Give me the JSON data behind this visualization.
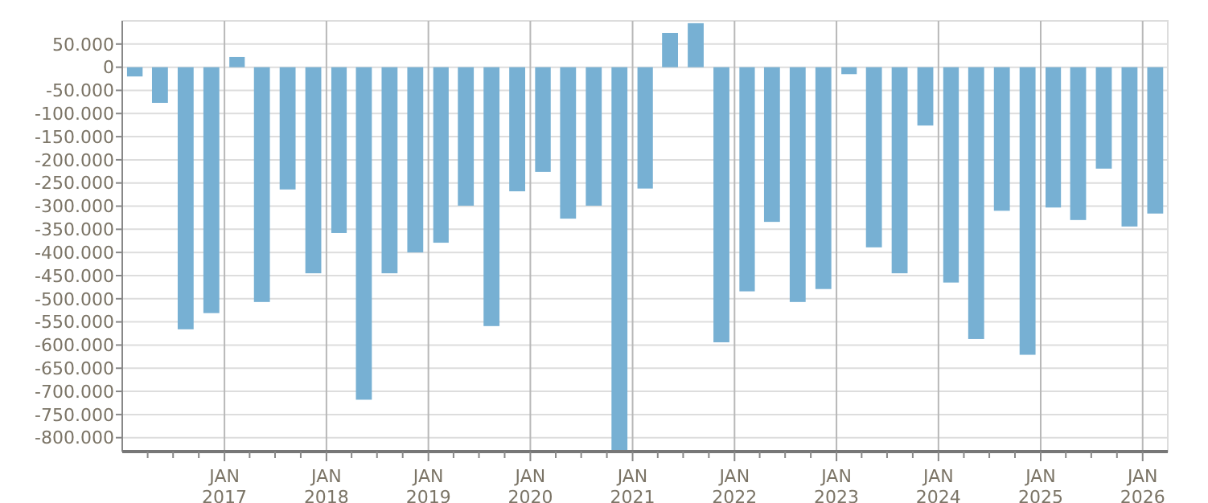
{
  "chart_data": {
    "type": "bar",
    "color": "#77b0d3",
    "grid": true,
    "x": [
      "2016-02-15",
      "2016-05-15",
      "2016-08-15",
      "2016-11-15",
      "2017-02-15",
      "2017-05-15",
      "2017-08-15",
      "2017-11-15",
      "2018-02-15",
      "2018-05-15",
      "2018-08-15",
      "2018-11-15",
      "2019-02-15",
      "2019-05-15",
      "2019-08-15",
      "2019-11-15",
      "2020-02-15",
      "2020-05-15",
      "2020-08-15",
      "2020-11-15",
      "2021-02-15",
      "2021-05-15",
      "2021-08-15",
      "2021-11-15",
      "2022-02-15",
      "2022-05-15",
      "2022-08-15",
      "2022-11-15",
      "2023-02-15",
      "2023-05-15",
      "2023-08-15",
      "2023-11-15",
      "2024-02-15",
      "2024-05-15",
      "2024-08-15",
      "2024-11-15",
      "2025-02-15",
      "2025-05-15",
      "2025-08-15",
      "2025-11-15",
      "2026-02-15"
    ],
    "values": [
      -20000,
      -77000,
      -566000,
      -531000,
      22000,
      -507000,
      -264000,
      -445000,
      -358000,
      -718000,
      -445000,
      -400000,
      -379000,
      -299000,
      -559000,
      -268000,
      -226000,
      -327000,
      -299000,
      -830000,
      -262000,
      74000,
      95000,
      -594000,
      -484000,
      -334000,
      -507000,
      -479000,
      -15000,
      -389000,
      -445000,
      -126000,
      -465000,
      -587000,
      -310000,
      -621000,
      -303000,
      -330000,
      -219000,
      -344000,
      -316000
    ],
    "xlim": [
      "2016-01",
      "2026-04"
    ],
    "xticks": [
      {
        "value": "2016-04",
        "label": null
      },
      {
        "value": "2016-07",
        "label": null
      },
      {
        "value": "2016-10",
        "label": null
      },
      {
        "value": "2017-01",
        "label": "JAN 2017"
      },
      {
        "value": "2017-04",
        "label": null
      },
      {
        "value": "2017-07",
        "label": null
      },
      {
        "value": "2017-10",
        "label": null
      },
      {
        "value": "2018-01",
        "label": "JAN 2018"
      },
      {
        "value": "2018-04",
        "label": null
      },
      {
        "value": "2018-07",
        "label": null
      },
      {
        "value": "2018-10",
        "label": null
      },
      {
        "value": "2019-01",
        "label": "JAN 2019"
      },
      {
        "value": "2019-04",
        "label": null
      },
      {
        "value": "2019-07",
        "label": null
      },
      {
        "value": "2019-10",
        "label": null
      },
      {
        "value": "2020-01",
        "label": "JAN 2020"
      },
      {
        "value": "2020-04",
        "label": null
      },
      {
        "value": "2020-07",
        "label": null
      },
      {
        "value": "2020-10",
        "label": null
      },
      {
        "value": "2021-01",
        "label": "JAN 2021"
      },
      {
        "value": "2021-04",
        "label": null
      },
      {
        "value": "2021-07",
        "label": null
      },
      {
        "value": "2021-10",
        "label": null
      },
      {
        "value": "2022-01",
        "label": "JAN 2022"
      },
      {
        "value": "2022-04",
        "label": null
      },
      {
        "value": "2022-07",
        "label": null
      },
      {
        "value": "2022-10",
        "label": null
      },
      {
        "value": "2023-01",
        "label": "JAN 2023"
      },
      {
        "value": "2023-04",
        "label": null
      },
      {
        "value": "2023-07",
        "label": null
      },
      {
        "value": "2023-10",
        "label": null
      },
      {
        "value": "2024-01",
        "label": "JAN 2024"
      },
      {
        "value": "2024-04",
        "label": null
      },
      {
        "value": "2024-07",
        "label": null
      },
      {
        "value": "2024-10",
        "label": null
      },
      {
        "value": "2025-01",
        "label": "JAN 2025"
      },
      {
        "value": "2025-04",
        "label": null
      },
      {
        "value": "2025-07",
        "label": null
      },
      {
        "value": "2025-10",
        "label": null
      },
      {
        "value": "2026-01",
        "label": "JAN 2026"
      }
    ],
    "ylim": [
      -830000,
      100000
    ],
    "yticks": [
      {
        "value": 50000,
        "label": "50.000"
      },
      0,
      {
        "value": -50000,
        "label": "-50.000"
      },
      {
        "value": -100000,
        "label": "-100.000"
      },
      {
        "value": -150000,
        "label": "-150.000"
      },
      {
        "value": -200000,
        "label": "-200.000"
      },
      {
        "value": -250000,
        "label": "-250.000"
      },
      {
        "value": -300000,
        "label": "-300.000"
      },
      {
        "value": -350000,
        "label": "-350.000"
      },
      {
        "value": -400000,
        "label": "-400.000"
      },
      {
        "value": -450000,
        "label": "-450.000"
      },
      {
        "value": -500000,
        "label": "-500.000"
      },
      {
        "value": -550000,
        "label": "-550.000"
      },
      {
        "value": -600000,
        "label": "-600.000"
      },
      {
        "value": -650000,
        "label": "-650.000"
      },
      {
        "value": -700000,
        "label": "-700.000"
      },
      {
        "value": -750000,
        "label": "-750.000"
      },
      {
        "value": -800000,
        "label": "-800.000"
      }
    ]
  }
}
